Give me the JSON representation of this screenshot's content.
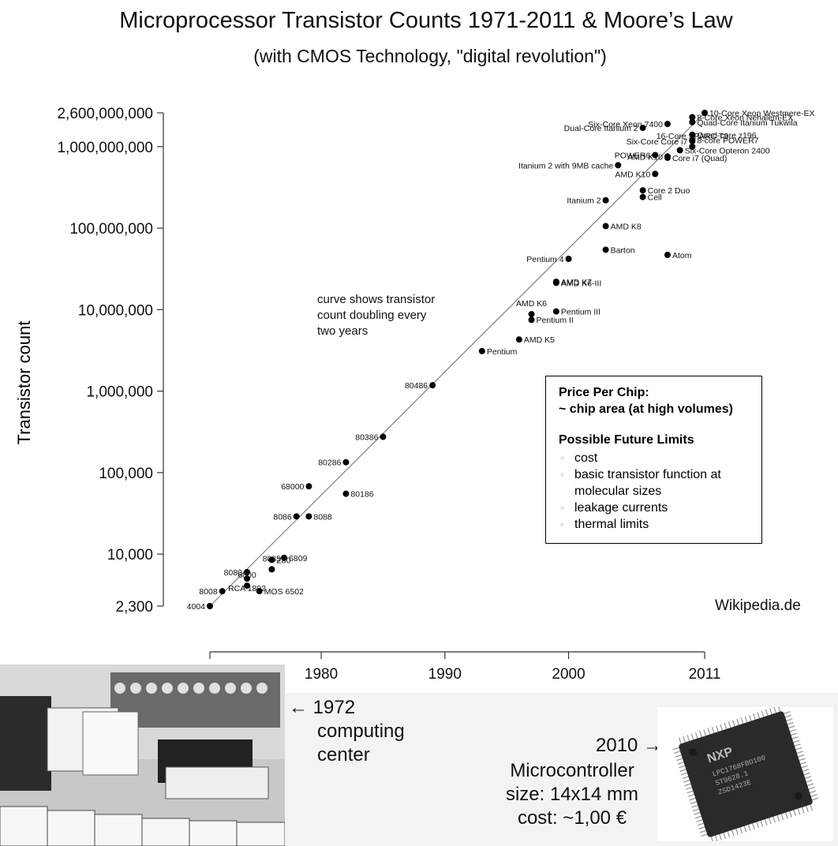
{
  "header": {
    "title": "Microprocessor Transistor Counts 1971-2011 & Moore’s Law",
    "subtitle": "(with CMOS Technology, \"digital revolution\")"
  },
  "chart_data": {
    "type": "scatter",
    "title": "Microprocessor Transistor Counts 1971-2011 & Moore’s Law",
    "subtitle": "(with CMOS Technology, \"digital revolution\")",
    "xlabel": "",
    "ylabel": "Transistor count",
    "yscale": "log",
    "xlim": [
      1971,
      2011
    ],
    "ylim": [
      2300,
      2600000000
    ],
    "x_ticks": [
      {
        "value": 1971,
        "label": ""
      },
      {
        "value": 1980,
        "label": "1980"
      },
      {
        "value": 1990,
        "label": "1990"
      },
      {
        "value": 2000,
        "label": "2000"
      },
      {
        "value": 2011,
        "label": "2011"
      }
    ],
    "y_ticks": [
      {
        "value": 2300,
        "label": "2,300"
      },
      {
        "value": 10000,
        "label": "10,000"
      },
      {
        "value": 100000,
        "label": "100,000"
      },
      {
        "value": 1000000,
        "label": "1,000,000"
      },
      {
        "value": 10000000,
        "label": "10,000,000"
      },
      {
        "value": 100000000,
        "label": "100,000,000"
      },
      {
        "value": 1000000000,
        "label": "1,000,000,000"
      },
      {
        "value": 2600000000,
        "label": "2,600,000,000"
      }
    ],
    "trend_line": {
      "from": [
        1971,
        2300
      ],
      "to": [
        2011,
        2600000000
      ]
    },
    "points": [
      {
        "label": "4004",
        "x": 1971,
        "y": 2300,
        "anchor": "left"
      },
      {
        "label": "8008",
        "x": 1972,
        "y": 3500,
        "anchor": "left"
      },
      {
        "label": "RCA 1802",
        "x": 1974,
        "y": 5000,
        "anchor": "below"
      },
      {
        "label": "8080",
        "x": 1974,
        "y": 6000,
        "anchor": "left"
      },
      {
        "label": "6800",
        "x": 1974,
        "y": 4100,
        "anchor": "above"
      },
      {
        "label": "MOS 6502",
        "x": 1975,
        "y": 3510,
        "anchor": "right"
      },
      {
        "label": "8085",
        "x": 1976,
        "y": 6500,
        "anchor": "above"
      },
      {
        "label": "Z80",
        "x": 1976,
        "y": 8500,
        "anchor": "right"
      },
      {
        "label": "6809",
        "x": 1977,
        "y": 9000,
        "anchor": "right"
      },
      {
        "label": "8086",
        "x": 1978,
        "y": 29000,
        "anchor": "left"
      },
      {
        "label": "8088",
        "x": 1979,
        "y": 29000,
        "anchor": "right"
      },
      {
        "label": "68000",
        "x": 1979,
        "y": 68000,
        "anchor": "left"
      },
      {
        "label": "80186",
        "x": 1982,
        "y": 55000,
        "anchor": "right"
      },
      {
        "label": "80286",
        "x": 1982,
        "y": 134000,
        "anchor": "left"
      },
      {
        "label": "80386",
        "x": 1985,
        "y": 275000,
        "anchor": "left"
      },
      {
        "label": "80486",
        "x": 1989,
        "y": 1180000,
        "anchor": "left"
      },
      {
        "label": "Pentium",
        "x": 1993,
        "y": 3100000,
        "anchor": "right"
      },
      {
        "label": "AMD K5",
        "x": 1996,
        "y": 4300000,
        "anchor": "right"
      },
      {
        "label": "Pentium II",
        "x": 1997,
        "y": 7500000,
        "anchor": "right"
      },
      {
        "label": "AMD K6",
        "x": 1997,
        "y": 8800000,
        "anchor": "above"
      },
      {
        "label": "Pentium III",
        "x": 1999,
        "y": 9500000,
        "anchor": "right"
      },
      {
        "label": "AMD K6-III",
        "x": 1999,
        "y": 21300000,
        "anchor": "right"
      },
      {
        "label": "AMD K7",
        "x": 1999,
        "y": 22000000,
        "anchor": "right"
      },
      {
        "label": "Pentium 4",
        "x": 2000,
        "y": 42000000,
        "anchor": "left"
      },
      {
        "label": "Barton",
        "x": 2003,
        "y": 54300000,
        "anchor": "right"
      },
      {
        "label": "AMD K8",
        "x": 2003,
        "y": 105900000,
        "anchor": "right"
      },
      {
        "label": "Itanium 2",
        "x": 2003,
        "y": 220000000,
        "anchor": "left"
      },
      {
        "label": "Cell",
        "x": 2006,
        "y": 241000000,
        "anchor": "right"
      },
      {
        "label": "Core 2 Duo",
        "x": 2006,
        "y": 291000000,
        "anchor": "right"
      },
      {
        "label": "Atom",
        "x": 2008,
        "y": 47000000,
        "anchor": "right"
      },
      {
        "label": "AMD K10",
        "x": 2007,
        "y": 463000000,
        "anchor": "left"
      },
      {
        "label": "Itanium 2 with 9MB cache",
        "x": 2004,
        "y": 592000000,
        "anchor": "left"
      },
      {
        "label": "Core i7 (Quad)",
        "x": 2008,
        "y": 731000000,
        "anchor": "right"
      },
      {
        "label": "POWER6",
        "x": 2007,
        "y": 789000000,
        "anchor": "left"
      },
      {
        "label": "AMD K10",
        "x": 2008,
        "y": 758000000,
        "anchor": "left"
      },
      {
        "label": "Six-Core Opteron 2400",
        "x": 2009,
        "y": 904000000,
        "anchor": "right"
      },
      {
        "label": "Dual-Core Itanium 2",
        "x": 2006,
        "y": 1700000000,
        "anchor": "left"
      },
      {
        "label": "Six-Core Xeon 7400",
        "x": 2008,
        "y": 1900000000,
        "anchor": "left"
      },
      {
        "label": "8-Core Xeon Nehalem-EX",
        "x": 2010,
        "y": 2300000000,
        "anchor": "right"
      },
      {
        "label": "Quad-Core Itanium Tukwila",
        "x": 2010,
        "y": 2000000000,
        "anchor": "right"
      },
      {
        "label": "Quad-core z196",
        "x": 2010,
        "y": 1400000000,
        "anchor": "right"
      },
      {
        "label": "8-core POWER7",
        "x": 2010,
        "y": 1200000000,
        "anchor": "right"
      },
      {
        "label": "Six-Core Core i7",
        "x": 2010,
        "y": 1170000000,
        "anchor": "left"
      },
      {
        "label": "16-Core SPARC T3",
        "x": 2010,
        "y": 1000000000,
        "anchor": "above"
      },
      {
        "label": "10-Core Xeon Westmere-EX",
        "x": 2011,
        "y": 2600000000,
        "anchor": "right"
      }
    ],
    "annotation": [
      "curve shows transistor",
      "count doubling every",
      "two years"
    ]
  },
  "legend_box": {
    "heading1": "Price Per Chip:",
    "heading2": "~ chip area (at high volumes)",
    "heading3": "Possible Future Limits",
    "items": [
      "cost",
      "basic transistor function at molecular sizes",
      "leakage currents",
      "thermal limits"
    ]
  },
  "credit": "Wikipedia.de",
  "computing_center": {
    "arrow": "←",
    "lines": [
      "1972",
      "computing",
      "center"
    ]
  },
  "microcontroller": {
    "year_line": "2010 →",
    "lines": [
      "Microcontroller",
      "size: 14x14 mm",
      "cost: ~1,00 €"
    ],
    "chip_marking": [
      "LPC1768FBD100",
      "ST9628.1",
      "ZSD1423E"
    ],
    "chip_logo": "NXP"
  },
  "colors": {
    "text": "#111111",
    "marker": "#000000",
    "trend_line": "#888888",
    "bottom_band": "#f3f3f3",
    "chip_body": "#2a2a2a"
  }
}
